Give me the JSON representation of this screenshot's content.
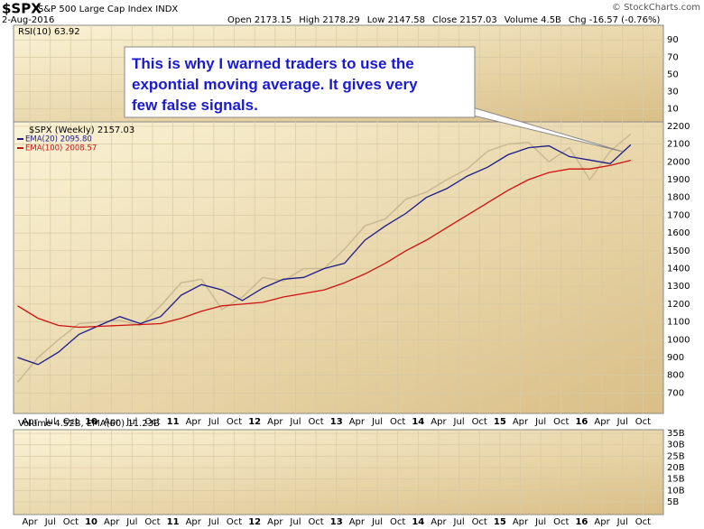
{
  "chart_data": {
    "type": "line",
    "symbol": "$SPX",
    "subtitle": "S&P 500 Large Cap Index INDX",
    "source": "© StockCharts.com",
    "date": "2-Aug-2016",
    "quote": [
      "Open 2173.15",
      "High 2178.29",
      "Low 2147.58",
      "Close 2157.03",
      "Volume 4.5B",
      "Chg -16.57 (-0.76%)"
    ],
    "annotation": [
      "This is why I warned traders to use the",
      "expontial moving average. It gives very",
      "few false signals."
    ],
    "rsi_label": "RSI(10) 63.92",
    "rsi_ylim": [
      -5,
      107
    ],
    "rsi_yticks": [
      90,
      70,
      50,
      30,
      10
    ],
    "volume_label": "Volume 4.52B, EMA(60) 11.23B",
    "volume_ylim": [
      -0.5,
      36.6
    ],
    "volume_yticks": [
      {
        "value": 35,
        "label": "35B"
      },
      {
        "value": 30,
        "label": "30B"
      },
      {
        "value": 25,
        "label": "25B"
      },
      {
        "value": 20,
        "label": "20B"
      },
      {
        "value": 15,
        "label": "15B"
      },
      {
        "value": 10,
        "label": "10B"
      },
      {
        "value": 5,
        "label": "5B"
      }
    ],
    "xlim": [
      2009.05,
      2017.0
    ],
    "xticks": [
      {
        "value": 2009.25,
        "label": "Apr"
      },
      {
        "value": 2009.5,
        "label": "Jul"
      },
      {
        "value": 2009.75,
        "label": "Oct"
      },
      {
        "value": 2010,
        "label": "10"
      },
      {
        "value": 2010.25,
        "label": "Apr"
      },
      {
        "value": 2010.5,
        "label": "Jul"
      },
      {
        "value": 2010.75,
        "label": "Oct"
      },
      {
        "value": 2011,
        "label": "11"
      },
      {
        "value": 2011.25,
        "label": "Apr"
      },
      {
        "value": 2011.5,
        "label": "Jul"
      },
      {
        "value": 2011.75,
        "label": "Oct"
      },
      {
        "value": 2012,
        "label": "12"
      },
      {
        "value": 2012.25,
        "label": "Apr"
      },
      {
        "value": 2012.5,
        "label": "Jul"
      },
      {
        "value": 2012.75,
        "label": "Oct"
      },
      {
        "value": 2013,
        "label": "13"
      },
      {
        "value": 2013.25,
        "label": "Apr"
      },
      {
        "value": 2013.5,
        "label": "Jul"
      },
      {
        "value": 2013.75,
        "label": "Oct"
      },
      {
        "value": 2014,
        "label": "14"
      },
      {
        "value": 2014.25,
        "label": "Apr"
      },
      {
        "value": 2014.5,
        "label": "Jul"
      },
      {
        "value": 2014.75,
        "label": "Oct"
      },
      {
        "value": 2015,
        "label": "15"
      },
      {
        "value": 2015.25,
        "label": "Apr"
      },
      {
        "value": 2015.5,
        "label": "Jul"
      },
      {
        "value": 2015.75,
        "label": "Oct"
      },
      {
        "value": 2016,
        "label": "16"
      },
      {
        "value": 2016.25,
        "label": "Apr"
      },
      {
        "value": 2016.5,
        "label": "Jul"
      },
      {
        "value": 2016.75,
        "label": "Oct"
      }
    ],
    "ylim": [
      585,
      2225
    ],
    "yticks": [
      2200,
      2100,
      2000,
      1900,
      1800,
      1700,
      1600,
      1500,
      1400,
      1300,
      1200,
      1100,
      1000,
      900,
      800,
      700
    ],
    "x": [
      2009.1,
      2009.35,
      2009.6,
      2009.85,
      2010.1,
      2010.35,
      2010.6,
      2010.85,
      2011.1,
      2011.35,
      2011.6,
      2011.85,
      2012.1,
      2012.35,
      2012.6,
      2012.85,
      2013.1,
      2013.35,
      2013.6,
      2013.85,
      2014.1,
      2014.35,
      2014.6,
      2014.85,
      2015.1,
      2015.35,
      2015.6,
      2015.85,
      2016.1,
      2016.35,
      2016.6
    ],
    "series": [
      {
        "name": "$SPX (Weekly) 2157.03",
        "color": "#c9b894",
        "values": [
          760,
          900,
          1000,
          1090,
          1100,
          1110,
          1080,
          1190,
          1320,
          1340,
          1170,
          1240,
          1350,
          1330,
          1400,
          1400,
          1510,
          1640,
          1680,
          1790,
          1830,
          1900,
          1960,
          2060,
          2100,
          2110,
          2000,
          2080,
          1900,
          2060,
          2157.03
        ]
      },
      {
        "name": "EMA(20) 2095.80",
        "color": "#1a1a8c",
        "values": [
          900,
          860,
          930,
          1030,
          1080,
          1130,
          1090,
          1130,
          1250,
          1310,
          1280,
          1220,
          1290,
          1340,
          1350,
          1400,
          1430,
          1560,
          1640,
          1710,
          1800,
          1850,
          1920,
          1970,
          2040,
          2080,
          2090,
          2030,
          2010,
          1990,
          2095.8
        ]
      },
      {
        "name": "EMA(100) 2008.57",
        "color": "#cc1111",
        "values": [
          1190,
          1120,
          1080,
          1070,
          1075,
          1080,
          1085,
          1090,
          1120,
          1160,
          1190,
          1200,
          1210,
          1240,
          1260,
          1280,
          1320,
          1370,
          1430,
          1500,
          1560,
          1630,
          1700,
          1770,
          1840,
          1900,
          1940,
          1960,
          1960,
          1980,
          2008.57
        ]
      }
    ]
  }
}
